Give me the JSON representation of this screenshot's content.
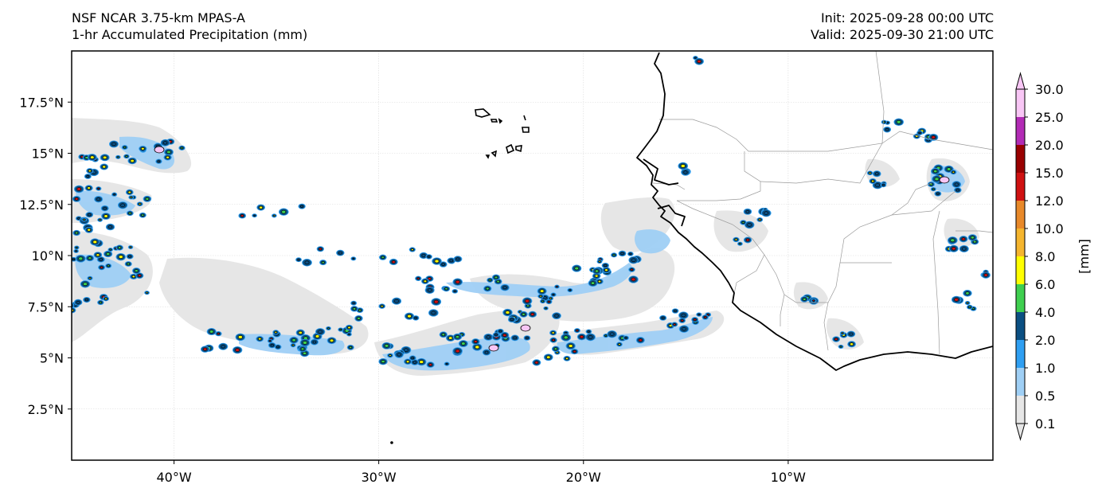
{
  "header": {
    "model_title": "NSF NCAR 3.75-km MPAS-A",
    "field_title": "1-hr Accumulated Precipitation (mm)",
    "init_time": "Init: 2025-09-28 00:00 UTC",
    "valid_time": "Valid: 2025-09-30 21:00 UTC"
  },
  "axes": {
    "x_ticks": [
      "40°W",
      "30°W",
      "20°W",
      "10°W"
    ],
    "y_ticks": [
      "17.5°N",
      "15°N",
      "12.5°N",
      "10°N",
      "7.5°N",
      "5°N",
      "2.5°N"
    ],
    "lon_range": [
      -45,
      0
    ],
    "lat_range": [
      0,
      20
    ]
  },
  "colorbar": {
    "unit_label": "[mm]",
    "levels": [
      "0.1",
      "0.5",
      "1.0",
      "2.0",
      "4.0",
      "6.0",
      "8.0",
      "10.0",
      "12.0",
      "15.0",
      "20.0",
      "25.0",
      "30.0"
    ],
    "colors": [
      "#e6e6e6",
      "#9fcff5",
      "#2f9ff2",
      "#0b4f82",
      "#3fcf4f",
      "#ffff00",
      "#f5b52e",
      "#e8892a",
      "#cf1111",
      "#990000",
      "#b22bb5",
      "#f8c6f5"
    ],
    "extend": "both"
  },
  "colors": {
    "coastline": "#000000",
    "borders": "#9a9a9a",
    "grid": "#d9d9d9"
  }
}
